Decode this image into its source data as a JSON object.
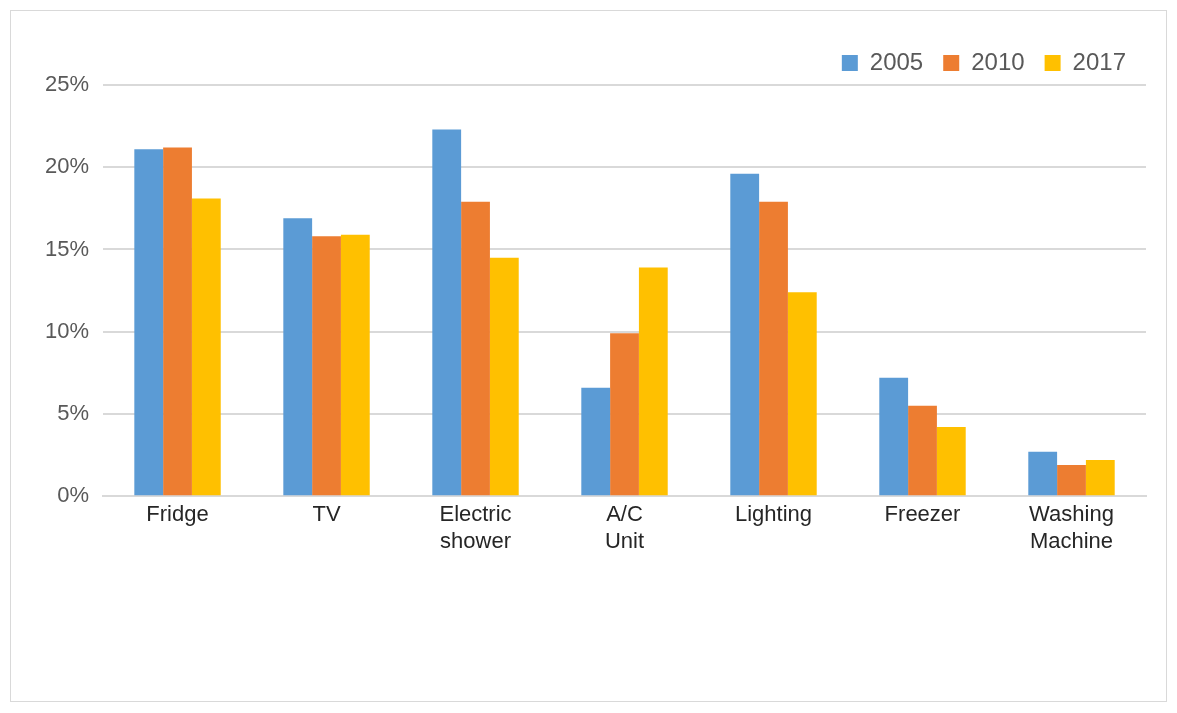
{
  "chart_data": {
    "type": "bar",
    "categories": [
      "Fridge",
      "TV",
      "Electric shower",
      "A/C Unit",
      "Lighting",
      "Freezer",
      "Washing Machine"
    ],
    "series": [
      {
        "name": "2005",
        "color": "#5b9bd5",
        "values": [
          21.1,
          16.9,
          22.3,
          6.6,
          19.6,
          7.2,
          2.7
        ]
      },
      {
        "name": "2010",
        "color": "#ed7d31",
        "values": [
          21.2,
          15.8,
          17.9,
          9.9,
          17.9,
          5.5,
          1.9
        ]
      },
      {
        "name": "2017",
        "color": "#ffc000",
        "values": [
          18.1,
          15.9,
          14.5,
          13.9,
          12.4,
          4.2,
          2.2
        ]
      }
    ],
    "ylim": [
      0,
      25
    ],
    "yticks": [
      {
        "value": 0,
        "label": "0%"
      },
      {
        "value": 5,
        "label": "5%"
      },
      {
        "value": 10,
        "label": "10%"
      },
      {
        "value": 15,
        "label": "15%"
      },
      {
        "value": 20,
        "label": "20%"
      },
      {
        "value": 25,
        "label": "25%"
      }
    ],
    "grid": "y",
    "legend": "top right"
  }
}
